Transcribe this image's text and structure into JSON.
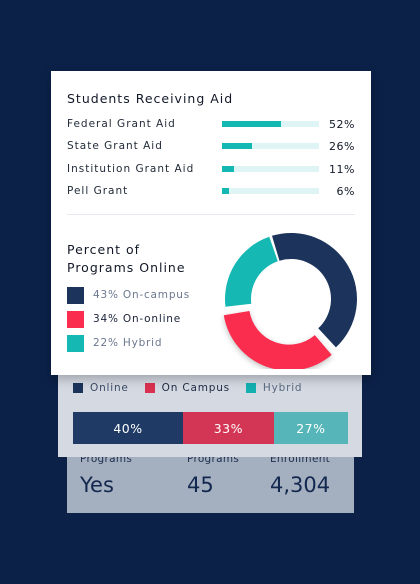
{
  "aid": {
    "title": "Students Receiving Aid",
    "rows": [
      {
        "label": "Federal Grant Aid",
        "value": 52,
        "pct": "52%"
      },
      {
        "label": "State Grant Aid",
        "value": 26,
        "pct": "26%"
      },
      {
        "label": "Institution Grant Aid",
        "value": 11,
        "pct": "11%"
      },
      {
        "label": "Pell Grant",
        "value": 6,
        "pct": "6%"
      }
    ]
  },
  "online": {
    "title": "Percent of Programs Online",
    "legend": [
      {
        "text": "43% On-campus",
        "color": "#1c345b"
      },
      {
        "text": "34% On-online",
        "color": "#fb2d4f"
      },
      {
        "text": "22% Hybrid",
        "color": "#15b8b2"
      }
    ]
  },
  "stacked": {
    "legend": [
      {
        "label": "Online",
        "color": "#1c345b"
      },
      {
        "label": "On Campus",
        "color": "#d9314f"
      },
      {
        "label": "Hybrid",
        "color": "#14b0b0"
      }
    ],
    "segments": [
      {
        "value": 40,
        "label": "40%",
        "color": "#1f3a64"
      },
      {
        "value": 33,
        "label": "33%",
        "color": "#d33654"
      },
      {
        "value": 27,
        "label": "27%",
        "color": "#55b5b9"
      }
    ]
  },
  "stats": [
    {
      "label": "Programs",
      "value": "Yes"
    },
    {
      "label": "Programs",
      "value": "45"
    },
    {
      "label": "Enrollment",
      "value": "4,304"
    }
  ],
  "chart_data": [
    {
      "type": "bar",
      "title": "Students Receiving Aid",
      "categories": [
        "Federal Grant Aid",
        "State Grant Aid",
        "Institution Grant Aid",
        "Pell Grant"
      ],
      "values": [
        52,
        26,
        11,
        6
      ],
      "ylim": [
        0,
        100
      ]
    },
    {
      "type": "pie",
      "title": "Percent of Programs Online",
      "categories": [
        "On-campus",
        "On-online",
        "Hybrid"
      ],
      "values": [
        43,
        34,
        22
      ]
    },
    {
      "type": "bar",
      "categories": [
        "Online",
        "On Campus",
        "Hybrid"
      ],
      "values": [
        40,
        33,
        27
      ]
    }
  ]
}
